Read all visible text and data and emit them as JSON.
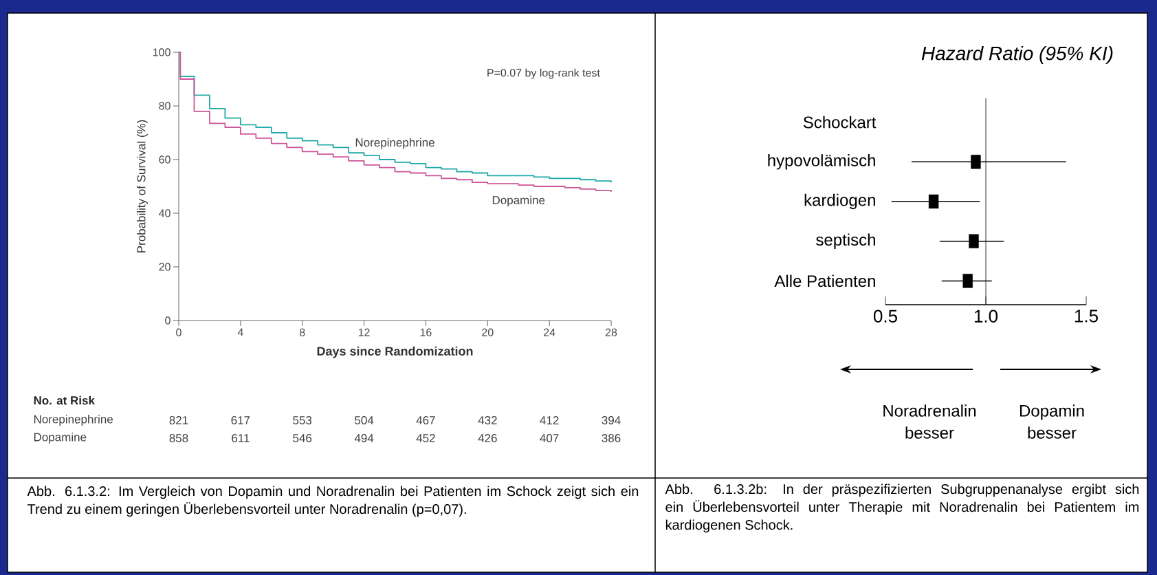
{
  "chart_data": [
    {
      "type": "step",
      "xlabel": "Days since Randomization",
      "ylabel": "Probability of Survival (%)",
      "x": [
        0,
        0.1,
        1,
        2,
        3,
        4,
        5,
        6,
        7,
        8,
        9,
        10,
        11,
        12,
        13,
        14,
        15,
        16,
        17,
        18,
        19,
        20,
        21,
        22,
        23,
        24,
        25,
        26,
        27,
        28
      ],
      "series": [
        {
          "name": "Norepinephrine",
          "color": "#20a8a8",
          "values": [
            100,
            91,
            84,
            79,
            75.5,
            73,
            72,
            70,
            68,
            67,
            65.5,
            64.5,
            62.5,
            61.5,
            60,
            59,
            58.5,
            57,
            56.5,
            55.5,
            55,
            54,
            54,
            54,
            53.5,
            53,
            53,
            52.5,
            52,
            51.5
          ]
        },
        {
          "name": "Dopamine",
          "color": "#cc5599",
          "values": [
            100,
            90,
            78,
            73.5,
            72,
            69.5,
            68,
            66,
            64.5,
            63,
            62,
            61,
            59.5,
            58,
            57,
            55.5,
            55,
            54,
            53,
            52.5,
            51.5,
            51,
            51,
            50.5,
            50,
            50,
            49.5,
            49,
            48.5,
            48
          ]
        }
      ],
      "xlim": [
        0,
        28
      ],
      "ylim": [
        0,
        100
      ],
      "xticks": [
        0,
        4,
        8,
        12,
        16,
        20,
        24,
        28
      ],
      "yticks": [
        0,
        20,
        40,
        60,
        80,
        100
      ],
      "annotations": [
        "P=0.07 by log-rank test",
        "No. at Risk",
        "Norepinephrine",
        "821",
        "617",
        "553",
        "504",
        "467",
        "432",
        "412",
        "394",
        "Dopamine",
        "858",
        "611",
        "546",
        "494",
        "452",
        "426",
        "407",
        "386",
        "Abb. 6.1.3.2: Im Vergleich von Dopamin und Noradrenalin bei Patienten im Schock zeigt sich ein Trend zu einem geringen Überlebensvorteil unter Noradrenalin (p=0,07)."
      ]
    },
    {
      "type": "scatter",
      "orientation": "horizontal",
      "title": "Hazard Ratio (95% KI)",
      "categories": [
        "Schockart",
        "hypovolämisch",
        "kardiogen",
        "septisch",
        "Alle Patienten"
      ],
      "values": [
        null,
        0.95,
        0.74,
        0.94,
        0.91
      ],
      "errors": [
        null,
        [
          0.63,
          1.4
        ],
        [
          0.53,
          0.97
        ],
        [
          0.77,
          1.09
        ],
        [
          0.78,
          1.03
        ]
      ],
      "color": "#000000",
      "marker": "square",
      "xlim": [
        0.5,
        1.5
      ],
      "xticks": [
        {
          "value": 0.5,
          "label": "0.5"
        },
        {
          "value": 1,
          "label": "1.0"
        },
        {
          "value": 1.5,
          "label": "1.5"
        }
      ],
      "ref_lines": [
        {
          "axis": "x",
          "value": 1
        }
      ],
      "annotations": [
        "Noradrenalin besser",
        "Dopamin besser",
        "Abb. 6.1.3.2b: In der präspezifizierten Subgruppenanalyse ergibt sich ein Überlebensvorteil unter Therapie mit Noradrenalin bei Patientem im kardiogenen Schock."
      ]
    }
  ]
}
